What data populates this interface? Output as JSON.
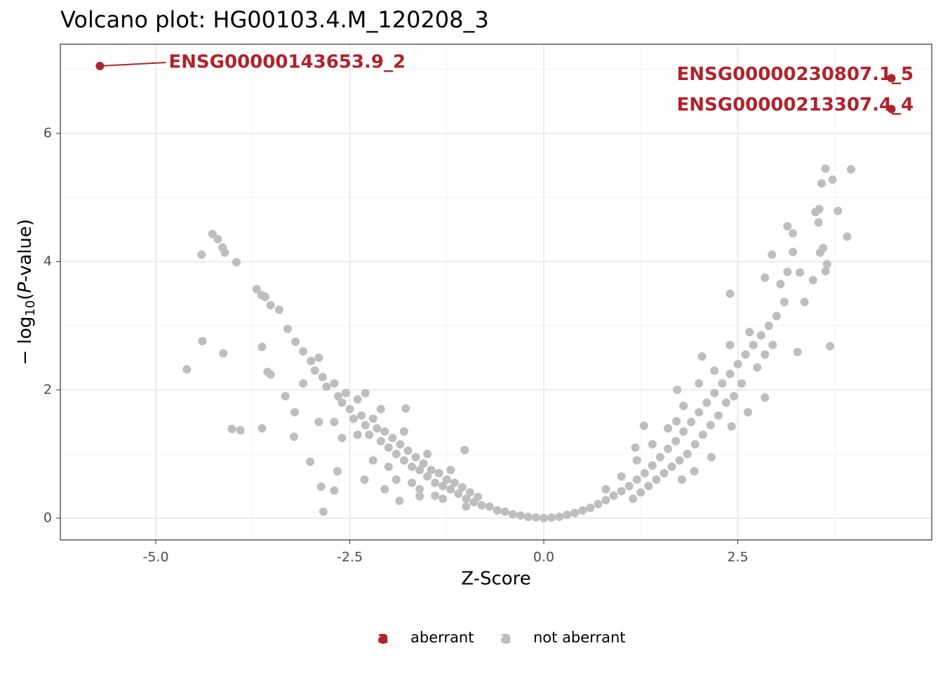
{
  "chart_data": {
    "type": "scatter",
    "title": "Volcano plot: HG00103.4.M_120208_3",
    "x_label": "Z-Score",
    "y_label": {
      "prefix": "− log",
      "subscript": "10",
      "open": "(",
      "italic": "P",
      "close": "-value)"
    },
    "xlim": [
      -6.23,
      5.0
    ],
    "ylim": [
      -0.34,
      7.39
    ],
    "xticks": [
      {
        "value": -5,
        "label": "-5.0"
      },
      {
        "value": -2.5,
        "label": "-2.5"
      },
      {
        "value": 0,
        "label": "0.0"
      },
      2.5
    ],
    "yticks": [
      0,
      2,
      4,
      6
    ],
    "grid": true,
    "legend_position": "bottom",
    "legend_key": "a",
    "series": [
      {
        "name": "aberrant",
        "color": "#b2222b",
        "x": [
          -5.72,
          4.48,
          4.48
        ],
        "values": [
          7.05,
          6.86,
          6.38
        ],
        "labels": [
          "ENSG00000143653.9_2",
          "ENSG00000230807.1_5",
          "ENSG00000213307.4_4"
        ]
      },
      {
        "name": "not aberrant",
        "color": "#bebebe",
        "x": [
          -4.41,
          -4.27,
          -4.2,
          -4.14,
          -4.11,
          -3.96,
          -4.4,
          -4.6,
          -4.13,
          -4.02,
          -3.91,
          -3.63,
          -3.7,
          -3.64,
          -3.59,
          -3.52,
          -3.41,
          -3.63,
          -3.56,
          -3.52,
          -3.21,
          -3.33,
          -3.22,
          -2.84,
          -2.87,
          -3.01,
          -2.66,
          -2.7,
          -1.78,
          -1.02,
          -1.86,
          -2.05,
          -1.6,
          -2.31,
          3.63,
          3.96,
          3.72,
          3.58,
          3.55,
          3.5,
          3.79,
          3.54,
          3.14,
          3.21,
          3.91,
          3.6,
          3.56,
          2.94,
          3.21,
          3.65,
          3.14,
          3.3,
          3.63,
          2.85,
          3.47,
          3.05,
          2.4,
          3.36,
          3.1,
          3.69,
          3.27,
          2.85,
          2.63,
          2.42,
          2.16,
          1.94,
          1.78,
          1.71,
          1.29,
          1.18,
          1.72,
          2.04,
          -3.3,
          -3.2,
          -3.1,
          -3.0,
          -2.95,
          -2.9,
          -2.85,
          -2.8,
          -2.7,
          -2.65,
          -2.6,
          -2.55,
          -2.5,
          -2.45,
          -2.4,
          -2.35,
          -2.3,
          -2.25,
          -2.2,
          -2.15,
          -2.1,
          -2.05,
          -2.0,
          -1.95,
          -1.9,
          -1.85,
          -1.8,
          -1.75,
          -1.7,
          -1.65,
          -1.6,
          -1.55,
          -1.5,
          -1.45,
          -1.4,
          -1.35,
          -1.3,
          -1.25,
          -1.2,
          -1.15,
          -1.1,
          -1.05,
          -1.0,
          -0.95,
          -0.9,
          -0.85,
          -0.8,
          -0.7,
          -0.6,
          -0.5,
          -0.4,
          -0.3,
          -0.2,
          -0.1,
          0,
          -2.9,
          -2.6,
          -2.2,
          -1.9,
          -1.6,
          -1.3,
          -3.1,
          -2.7,
          -2.4,
          -2.0,
          -1.7,
          -1.4,
          -1.0,
          -2.3,
          -2.1,
          -1.8,
          -1.5,
          -1.2,
          0.1,
          0.2,
          0.3,
          0.4,
          0.5,
          0.6,
          0.7,
          0.8,
          0.9,
          1.0,
          1.1,
          1.2,
          1.3,
          1.4,
          1.5,
          1.6,
          1.7,
          1.8,
          1.9,
          2.0,
          2.1,
          2.2,
          2.3,
          2.4,
          2.5,
          2.6,
          2.7,
          2.8,
          2.9,
          3.0,
          2.55,
          2.45,
          2.35,
          2.25,
          2.15,
          2.05,
          1.95,
          1.85,
          1.75,
          1.65,
          1.55,
          1.45,
          1.35,
          1.25,
          1.15,
          2.75,
          2.85,
          2.95,
          2.65,
          2.4,
          2.2,
          2.0,
          1.8,
          1.6,
          1.4,
          1.2,
          1.0,
          0.8
        ],
        "values": [
          4.11,
          4.43,
          4.35,
          4.22,
          4.14,
          3.99,
          2.76,
          2.32,
          2.57,
          1.39,
          1.37,
          1.4,
          3.57,
          3.48,
          3.45,
          3.32,
          3.25,
          2.67,
          2.28,
          2.24,
          1.65,
          1.9,
          1.27,
          0.1,
          0.49,
          0.88,
          0.73,
          0.43,
          1.71,
          1.06,
          0.27,
          0.45,
          0.34,
          0.6,
          5.45,
          5.44,
          5.28,
          5.22,
          4.82,
          4.77,
          4.79,
          4.61,
          4.55,
          4.44,
          4.39,
          4.21,
          4.14,
          4.11,
          4.15,
          3.96,
          3.84,
          3.83,
          3.85,
          3.75,
          3.71,
          3.65,
          3.5,
          3.37,
          3.37,
          2.68,
          2.59,
          1.88,
          1.65,
          1.43,
          0.95,
          0.73,
          0.6,
          1.51,
          1.44,
          1.1,
          2.0,
          2.52,
          2.95,
          2.75,
          2.6,
          2.45,
          2.3,
          2.5,
          2.2,
          2.05,
          2.1,
          1.9,
          1.8,
          1.95,
          1.7,
          1.55,
          1.85,
          1.6,
          1.45,
          1.3,
          1.55,
          1.4,
          1.2,
          1.35,
          1.1,
          1.25,
          1.0,
          1.15,
          0.9,
          1.05,
          0.8,
          0.95,
          0.75,
          0.85,
          0.65,
          0.75,
          0.55,
          0.7,
          0.5,
          0.6,
          0.45,
          0.55,
          0.38,
          0.48,
          0.3,
          0.4,
          0.25,
          0.33,
          0.2,
          0.18,
          0.12,
          0.1,
          0.06,
          0.04,
          0.02,
          0.01,
          0.0,
          1.5,
          1.25,
          0.9,
          0.6,
          0.45,
          0.3,
          2.1,
          1.5,
          1.3,
          0.8,
          0.55,
          0.35,
          0.18,
          1.95,
          1.7,
          1.35,
          1.0,
          0.75,
          0.01,
          0.02,
          0.05,
          0.08,
          0.12,
          0.16,
          0.22,
          0.28,
          0.35,
          0.42,
          0.5,
          0.6,
          0.7,
          0.82,
          0.95,
          1.08,
          1.2,
          1.35,
          1.5,
          1.65,
          1.8,
          1.95,
          2.1,
          2.25,
          2.4,
          2.55,
          2.7,
          2.85,
          3.0,
          3.15,
          2.1,
          1.9,
          1.8,
          1.6,
          1.45,
          1.3,
          1.15,
          1.0,
          0.9,
          0.8,
          0.7,
          0.6,
          0.5,
          0.4,
          0.3,
          2.35,
          2.55,
          2.7,
          2.9,
          2.7,
          2.3,
          2.1,
          1.75,
          1.4,
          1.15,
          0.9,
          0.65,
          0.45
        ]
      }
    ]
  }
}
